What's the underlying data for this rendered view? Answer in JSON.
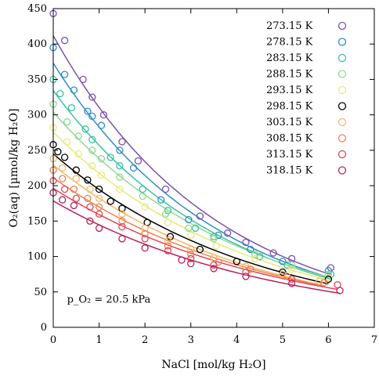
{
  "chart_data": {
    "type": "scatter",
    "xlabel": "NaCl [mol/kg H₂O]",
    "ylabel": "O₂(aq) [µmol/kg H₂O]",
    "annotation": "p_O₂ = 20.5 kPa",
    "xlim": [
      0,
      7
    ],
    "ylim": [
      0,
      450
    ],
    "x_ticks": [
      0,
      1,
      2,
      3,
      4,
      5,
      6,
      7
    ],
    "y_ticks": [
      0,
      50,
      100,
      150,
      200,
      250,
      300,
      350,
      400,
      450
    ],
    "legend_position": "top-right",
    "grid": false,
    "series": [
      {
        "name": "273.15 K",
        "color": "#7b52ab",
        "x": [
          0.0,
          0.25,
          0.65,
          0.85,
          1.1,
          1.5,
          1.85,
          2.45,
          3.2,
          3.8,
          4.2,
          4.8,
          5.2,
          6.05
        ],
        "y": [
          443,
          405,
          350,
          325,
          300,
          262,
          235,
          195,
          157,
          133,
          120,
          105,
          97,
          84
        ]
      },
      {
        "name": "278.15 K",
        "color": "#2d8fc4",
        "x": [
          0.0,
          0.25,
          0.45,
          0.75,
          0.85,
          1.05,
          1.45,
          1.75,
          2.35,
          2.95,
          3.6,
          4.3,
          5.0,
          6.0
        ],
        "y": [
          395,
          357,
          335,
          305,
          298,
          285,
          250,
          225,
          180,
          152,
          130,
          110,
          93,
          80
        ]
      },
      {
        "name": "283.15 K",
        "color": "#3dbfa0",
        "x": [
          0.0,
          0.15,
          0.4,
          0.7,
          0.85,
          1.25,
          1.45,
          1.95,
          2.5,
          3.1,
          3.5,
          4.5,
          5.1,
          6.05
        ],
        "y": [
          350,
          330,
          310,
          280,
          265,
          240,
          228,
          195,
          165,
          140,
          128,
          100,
          88,
          75
        ]
      },
      {
        "name": "288.15 K",
        "color": "#8fd98f",
        "x": [
          0.0,
          0.3,
          0.55,
          0.85,
          1.05,
          1.45,
          1.95,
          2.45,
          2.95,
          3.5,
          4.4,
          5.2,
          6.0
        ],
        "y": [
          315,
          290,
          270,
          250,
          238,
          212,
          185,
          160,
          140,
          125,
          103,
          88,
          75
        ]
      },
      {
        "name": "293.15 K",
        "color": "#e8e880",
        "x": [
          0.0,
          0.3,
          0.55,
          0.85,
          1.05,
          1.45,
          2.0,
          2.5,
          3.0,
          3.55,
          4.4,
          5.2,
          6.0
        ],
        "y": [
          282,
          262,
          245,
          228,
          215,
          195,
          170,
          148,
          130,
          115,
          97,
          82,
          70
        ]
      },
      {
        "name": "298.15 K",
        "color": "#000000",
        "x": [
          0.0,
          0.1,
          0.25,
          0.5,
          0.75,
          1.0,
          1.25,
          1.5,
          2.05,
          2.55,
          3.2,
          4.0,
          5.0,
          6.0
        ],
        "y": [
          258,
          248,
          240,
          222,
          208,
          195,
          178,
          168,
          148,
          128,
          110,
          93,
          78,
          68
        ]
      },
      {
        "name": "303.15 K",
        "color": "#f5b865",
        "x": [
          0.0,
          0.2,
          0.5,
          0.8,
          1.0,
          1.5,
          2.0,
          2.5,
          3.0,
          3.5,
          4.2,
          5.0,
          5.8
        ],
        "y": [
          238,
          225,
          210,
          195,
          182,
          160,
          140,
          122,
          110,
          98,
          86,
          75,
          65
        ]
      },
      {
        "name": "308.15 K",
        "color": "#ee8050",
        "x": [
          0.0,
          0.2,
          0.45,
          0.75,
          1.0,
          1.5,
          2.0,
          2.5,
          3.0,
          3.6,
          4.3,
          5.1,
          5.9
        ],
        "y": [
          222,
          210,
          195,
          182,
          170,
          150,
          132,
          115,
          103,
          92,
          82,
          72,
          63
        ]
      },
      {
        "name": "313.15 K",
        "color": "#e04656",
        "x": [
          0.0,
          0.25,
          0.5,
          0.8,
          1.0,
          1.5,
          2.0,
          2.5,
          3.0,
          3.5,
          4.2,
          5.2,
          6.2
        ],
        "y": [
          207,
          195,
          182,
          170,
          160,
          142,
          125,
          108,
          97,
          88,
          78,
          68,
          60
        ]
      },
      {
        "name": "318.15 K",
        "color": "#b5225e",
        "x": [
          0.0,
          0.2,
          0.45,
          0.8,
          1.0,
          1.5,
          2.0,
          2.8,
          3.0,
          3.5,
          4.2,
          5.2,
          6.25
        ],
        "y": [
          190,
          180,
          172,
          150,
          140,
          125,
          112,
          95,
          90,
          83,
          72,
          62,
          52
        ]
      }
    ]
  }
}
